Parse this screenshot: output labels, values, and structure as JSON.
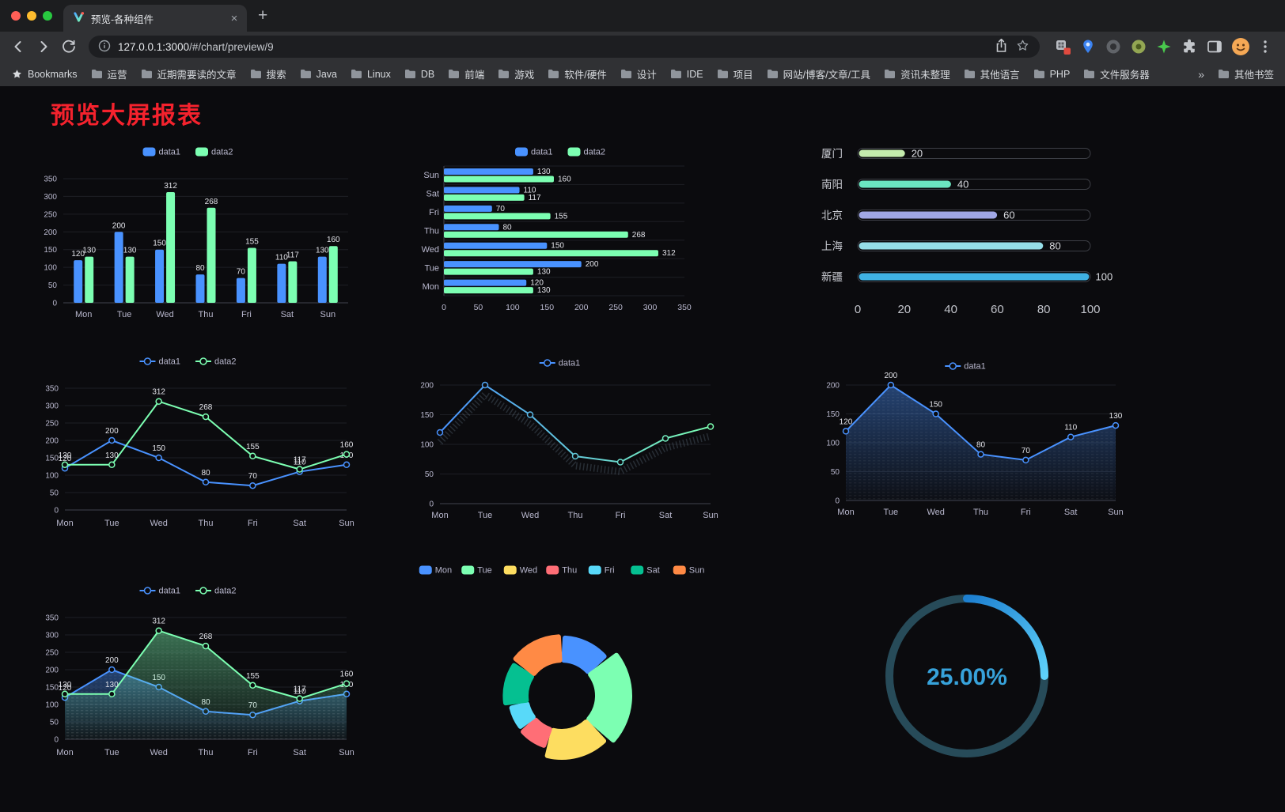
{
  "window": {
    "tab_title": "预览-各种组件",
    "tab_close_glyph": "×",
    "new_tab_glyph": "+",
    "url_host": "127.0.0.1:3000",
    "url_path": "/#/chart/preview/9",
    "bookmarks_bar": {
      "label": "Bookmarks",
      "folders": [
        "运营",
        "近期需要读的文章",
        "搜索",
        "Java",
        "Linux",
        "DB",
        "前端",
        "游戏",
        "软件/硬件",
        "设计",
        "IDE",
        "项目",
        "网站/博客/文章/工具",
        "资讯未整理",
        "其他语言",
        "PHP",
        "文件服务器"
      ],
      "overflow_chevron": "»",
      "other_bookmarks": "其他书签"
    }
  },
  "page": {
    "title": "预览大屏报表",
    "title_color": "#f5222d",
    "background": "#0b0b0e"
  },
  "chart_data": [
    {
      "type": "bar",
      "orientation": "vertical",
      "categories": [
        "Mon",
        "Tue",
        "Wed",
        "Thu",
        "Fri",
        "Sat",
        "Sun"
      ],
      "series": [
        {
          "name": "data1",
          "color": "#4992ff",
          "values": [
            120,
            200,
            150,
            80,
            70,
            110,
            130
          ]
        },
        {
          "name": "data2",
          "color": "#7cffb2",
          "values": [
            130,
            130,
            312,
            268,
            155,
            117,
            160
          ]
        }
      ],
      "ylim": [
        0,
        350
      ],
      "yticks": [
        0,
        50,
        100,
        150,
        200,
        250,
        300,
        350
      ],
      "legend_position": "top",
      "value_labels": true
    },
    {
      "type": "bar",
      "orientation": "horizontal",
      "categories": [
        "Mon",
        "Tue",
        "Wed",
        "Thu",
        "Fri",
        "Sat",
        "Sun"
      ],
      "series": [
        {
          "name": "data1",
          "color": "#4992ff",
          "values": [
            120,
            200,
            150,
            80,
            70,
            110,
            130
          ]
        },
        {
          "name": "data2",
          "color": "#7cffb2",
          "values": [
            130,
            130,
            312,
            268,
            155,
            117,
            160
          ]
        }
      ],
      "xlim": [
        0,
        350
      ],
      "xticks": [
        0,
        50,
        100,
        150,
        200,
        250,
        300,
        350
      ],
      "legend_position": "top",
      "value_labels": true
    },
    {
      "type": "bar",
      "variant": "progress",
      "orientation": "horizontal",
      "items": [
        {
          "label": "厦门",
          "value": 20,
          "color": "#c4ebad"
        },
        {
          "label": "南阳",
          "value": 40,
          "color": "#6be6c1"
        },
        {
          "label": "北京",
          "value": 60,
          "color": "#a0a7e6"
        },
        {
          "label": "上海",
          "value": 80,
          "color": "#96dee8"
        },
        {
          "label": "新疆",
          "value": 100,
          "color": "#3fb1e3"
        }
      ],
      "xlim": [
        0,
        100
      ],
      "xticks": [
        0,
        20,
        40,
        60,
        80,
        100
      ]
    },
    {
      "type": "line",
      "categories": [
        "Mon",
        "Tue",
        "Wed",
        "Thu",
        "Fri",
        "Sat",
        "Sun"
      ],
      "series": [
        {
          "name": "data1",
          "color": "#4992ff",
          "values": [
            120,
            200,
            150,
            80,
            70,
            110,
            130
          ]
        },
        {
          "name": "data2",
          "color": "#7cffb2",
          "values": [
            130,
            130,
            312,
            268,
            155,
            117,
            160
          ]
        }
      ],
      "ylim": [
        0,
        350
      ],
      "yticks": [
        0,
        50,
        100,
        150,
        200,
        250,
        300,
        350
      ],
      "legend_position": "top",
      "value_labels": true
    },
    {
      "type": "line",
      "categories": [
        "Mon",
        "Tue",
        "Wed",
        "Thu",
        "Fri",
        "Sat",
        "Sun"
      ],
      "series": [
        {
          "name": "data1",
          "gradient": [
            "#4992ff",
            "#7cffb2"
          ],
          "values": [
            120,
            200,
            150,
            80,
            70,
            110,
            130
          ]
        }
      ],
      "ylim": [
        0,
        200
      ],
      "yticks": [
        0,
        50,
        100,
        150,
        200
      ],
      "legend_position": "top",
      "value_labels": false,
      "shadow_trail": true
    },
    {
      "type": "area",
      "categories": [
        "Mon",
        "Tue",
        "Wed",
        "Thu",
        "Fri",
        "Sat",
        "Sun"
      ],
      "series": [
        {
          "name": "data1",
          "color": "#4992ff",
          "values": [
            120,
            200,
            150,
            80,
            70,
            110,
            130
          ],
          "area": true
        }
      ],
      "ylim": [
        0,
        200
      ],
      "yticks": [
        0,
        50,
        100,
        150,
        200
      ],
      "legend_position": "top",
      "value_labels": true
    },
    {
      "type": "area",
      "categories": [
        "Mon",
        "Tue",
        "Wed",
        "Thu",
        "Fri",
        "Sat",
        "Sun"
      ],
      "series": [
        {
          "name": "data1",
          "color": "#4992ff",
          "values": [
            120,
            200,
            150,
            80,
            70,
            110,
            130
          ],
          "area": true
        },
        {
          "name": "data2",
          "color": "#7cffb2",
          "values": [
            130,
            130,
            312,
            268,
            155,
            117,
            160
          ],
          "area": true
        }
      ],
      "ylim": [
        0,
        350
      ],
      "yticks": [
        0,
        50,
        100,
        150,
        200,
        250,
        300,
        350
      ],
      "legend_position": "top",
      "value_labels": true
    },
    {
      "type": "pie",
      "variant": "rose-donut",
      "legend_position": "top",
      "items": [
        {
          "name": "Mon",
          "value": 120,
          "color": "#4992ff"
        },
        {
          "name": "Tue",
          "value": 200,
          "color": "#7cffb2"
        },
        {
          "name": "Wed",
          "value": 150,
          "color": "#fddd60"
        },
        {
          "name": "Thu",
          "value": 80,
          "color": "#ff6e76"
        },
        {
          "name": "Fri",
          "value": 70,
          "color": "#58d9f9"
        },
        {
          "name": "Sat",
          "value": 110,
          "color": "#05c091"
        },
        {
          "name": "Sun",
          "value": 130,
          "color": "#ff8a45"
        }
      ]
    },
    {
      "type": "gauge",
      "value": 25,
      "max": 100,
      "label": "25.00%",
      "color": "#37a2da",
      "track_color": "#274b59"
    }
  ]
}
